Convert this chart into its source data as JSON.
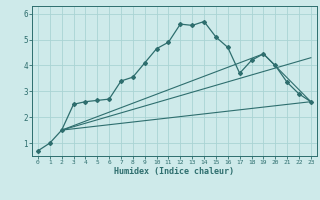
{
  "xlabel": "Humidex (Indice chaleur)",
  "background_color": "#ceeaea",
  "line_color": "#2e6e6e",
  "grid_color": "#aad4d4",
  "xlim": [
    -0.5,
    23.5
  ],
  "ylim": [
    0.5,
    6.3
  ],
  "yticks": [
    1,
    2,
    3,
    4,
    5,
    6
  ],
  "xticks": [
    0,
    1,
    2,
    3,
    4,
    5,
    6,
    7,
    8,
    9,
    10,
    11,
    12,
    13,
    14,
    15,
    16,
    17,
    18,
    19,
    20,
    21,
    22,
    23
  ],
  "line1_x": [
    0,
    1,
    2,
    3,
    4,
    5,
    6,
    7,
    8,
    9,
    10,
    11,
    12,
    13,
    14,
    15,
    16,
    17,
    18,
    19,
    20,
    21,
    22,
    23
  ],
  "line1_y": [
    0.7,
    1.0,
    1.5,
    2.5,
    2.6,
    2.65,
    2.7,
    3.4,
    3.55,
    4.1,
    4.65,
    4.9,
    5.6,
    5.55,
    5.7,
    5.1,
    4.7,
    3.7,
    4.2,
    4.45,
    4.0,
    3.35,
    2.9,
    2.6
  ],
  "line2_x": [
    2,
    23
  ],
  "line2_y": [
    1.5,
    2.6
  ],
  "line3_x": [
    2,
    19,
    23
  ],
  "line3_y": [
    1.5,
    4.45,
    2.6
  ],
  "line4_x": [
    2,
    23
  ],
  "line4_y": [
    1.5,
    4.3
  ]
}
